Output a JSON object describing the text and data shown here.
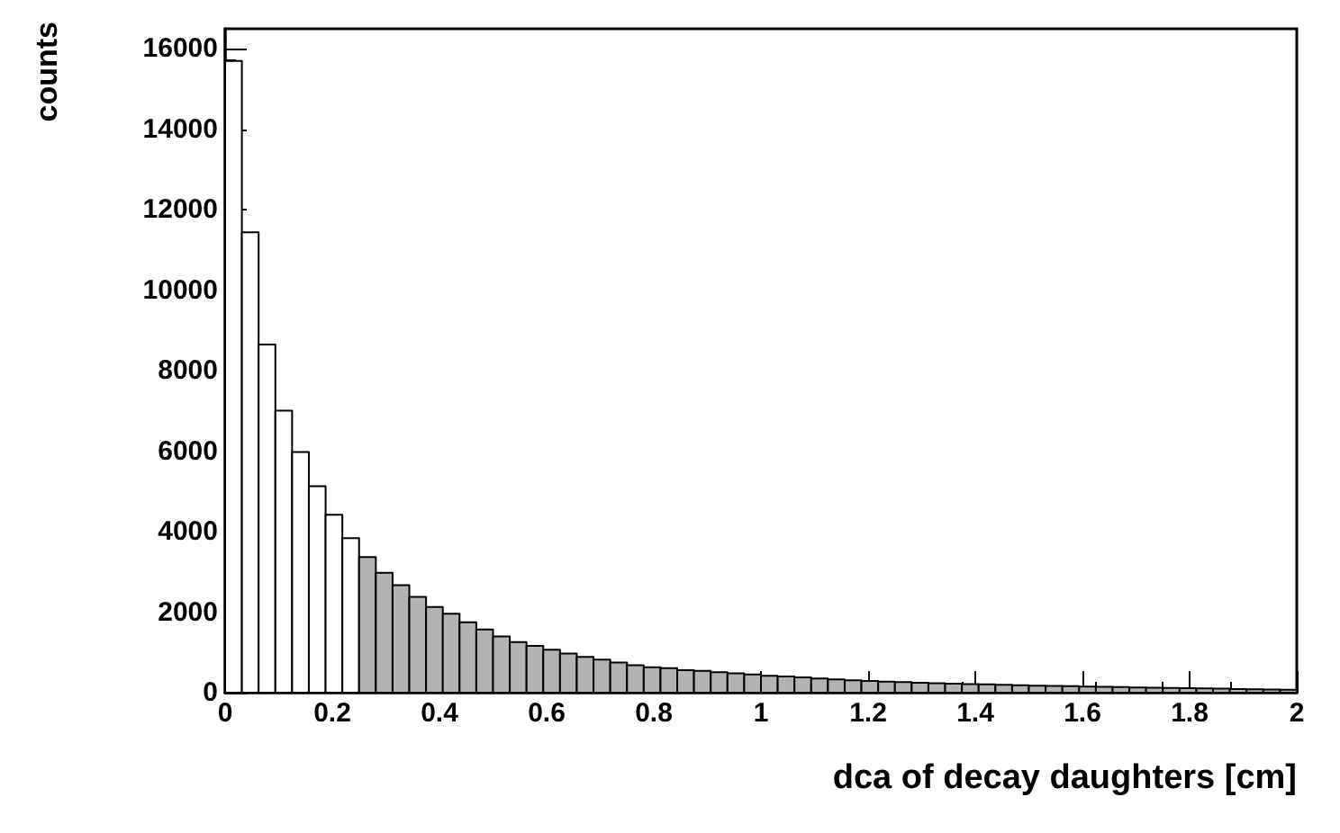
{
  "chart_data": {
    "type": "histogram",
    "xlabel": "dca of decay daughters [cm]",
    "ylabel": "counts",
    "bins": [
      0,
      0.03125,
      0.0625,
      0.09375,
      0.125,
      0.15625,
      0.1875,
      0.21875,
      0.25,
      0.28125,
      0.3125,
      0.34375,
      0.375,
      0.40625,
      0.4375,
      0.46875,
      0.5,
      0.53125,
      0.5625,
      0.59375,
      0.625,
      0.65625,
      0.6875,
      0.71875,
      0.75,
      0.78125,
      0.8125,
      0.84375,
      0.875,
      0.90625,
      0.9375,
      0.96875,
      1,
      1.03125,
      1.0625,
      1.09375,
      1.125,
      1.15625,
      1.1875,
      1.21875,
      1.25,
      1.28125,
      1.3125,
      1.34375,
      1.375,
      1.40625,
      1.4375,
      1.46875,
      1.5,
      1.53125,
      1.5625,
      1.59375,
      1.625,
      1.65625,
      1.6875,
      1.71875,
      1.75,
      1.78125,
      1.8125,
      1.84375,
      1.875,
      1.90625,
      1.9375,
      1.96875,
      2
    ],
    "values": [
      15700,
      11440,
      8650,
      7010,
      5980,
      5130,
      4420,
      3840,
      3370,
      2980,
      2670,
      2380,
      2130,
      1960,
      1750,
      1570,
      1400,
      1260,
      1160,
      1070,
      970,
      890,
      820,
      750,
      680,
      630,
      610,
      560,
      540,
      510,
      480,
      450,
      420,
      400,
      380,
      350,
      330,
      310,
      290,
      275,
      260,
      245,
      235,
      225,
      215,
      205,
      195,
      185,
      175,
      165,
      160,
      150,
      145,
      140,
      130,
      125,
      120,
      110,
      105,
      100,
      90,
      85,
      80,
      70
    ],
    "colors": [
      "#ffffff",
      "#ffffff",
      "#ffffff",
      "#ffffff",
      "#ffffff",
      "#ffffff",
      "#ffffff",
      "#ffffff",
      "#b3b3b3",
      "#b3b3b3",
      "#b3b3b3",
      "#b3b3b3",
      "#b3b3b3",
      "#b3b3b3",
      "#b3b3b3",
      "#b3b3b3",
      "#b3b3b3",
      "#b3b3b3",
      "#b3b3b3",
      "#b3b3b3",
      "#b3b3b3",
      "#b3b3b3",
      "#b3b3b3",
      "#b3b3b3",
      "#b3b3b3",
      "#b3b3b3",
      "#b3b3b3",
      "#b3b3b3",
      "#b3b3b3",
      "#b3b3b3",
      "#b3b3b3",
      "#b3b3b3",
      "#b3b3b3",
      "#b3b3b3",
      "#b3b3b3",
      "#b3b3b3",
      "#b3b3b3",
      "#b3b3b3",
      "#b3b3b3",
      "#b3b3b3",
      "#b3b3b3",
      "#b3b3b3",
      "#b3b3b3",
      "#b3b3b3",
      "#b3b3b3",
      "#b3b3b3",
      "#b3b3b3",
      "#b3b3b3",
      "#b3b3b3",
      "#b3b3b3",
      "#b3b3b3",
      "#b3b3b3",
      "#b3b3b3",
      "#b3b3b3",
      "#b3b3b3",
      "#b3b3b3",
      "#b3b3b3",
      "#b3b3b3",
      "#b3b3b3",
      "#b3b3b3",
      "#b3b3b3",
      "#b3b3b3",
      "#b3b3b3",
      "#b3b3b3"
    ],
    "color": "#000000",
    "xlim": [
      0,
      2
    ],
    "xticks": [
      0,
      0.2,
      0.4,
      0.6,
      0.8,
      1,
      1.2,
      1.4,
      1.6,
      1.8,
      2
    ],
    "ylim": [
      0,
      16500
    ],
    "yticks": [
      0,
      2000,
      4000,
      6000,
      8000,
      10000,
      12000,
      14000,
      16000
    ],
    "grid": false
  }
}
